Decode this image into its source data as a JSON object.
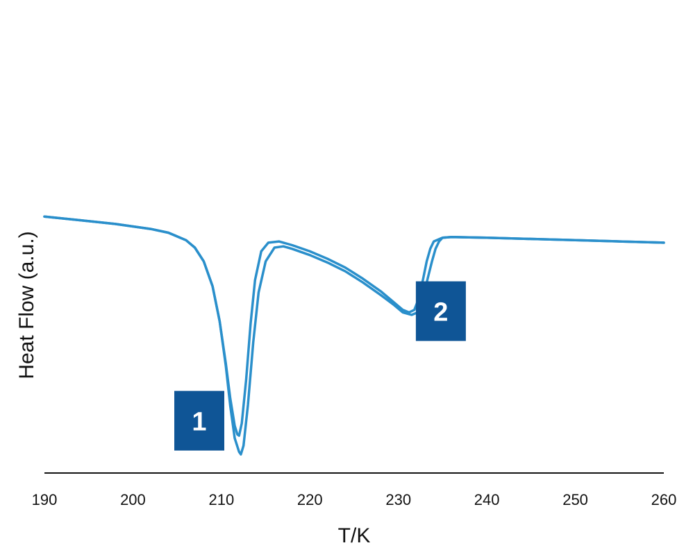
{
  "chart_data": {
    "type": "line",
    "title": "",
    "xlabel": "T/K",
    "ylabel": "Heat Flow (a.u.)",
    "xlim": [
      190,
      260
    ],
    "ylim": [
      -1.0,
      1.15
    ],
    "x_ticks": [
      190,
      200,
      210,
      220,
      230,
      240,
      250,
      260
    ],
    "y_ticks_shown": false,
    "grid": false,
    "legend": "none",
    "line_color": "#2a8fcb",
    "label_box_color": "#0f5596",
    "series": [
      {
        "x": [
          190,
          194,
          198,
          202,
          204,
          206,
          207,
          208,
          209,
          209.8,
          210.5,
          211.0,
          211.5,
          211.8,
          212.0,
          212.3,
          212.8,
          213.3,
          213.8,
          214.5,
          215.3,
          216.5,
          218,
          220,
          222,
          224,
          226,
          228,
          229.5,
          230.5,
          231.2,
          231.8,
          232.3,
          232.8,
          233.2,
          233.6,
          234,
          235,
          236,
          240,
          245,
          250,
          255,
          260
        ],
        "y": [
          1.06,
          1.03,
          1.0,
          0.96,
          0.93,
          0.87,
          0.81,
          0.7,
          0.5,
          0.22,
          -0.12,
          -0.4,
          -0.62,
          -0.69,
          -0.7,
          -0.6,
          -0.25,
          0.2,
          0.55,
          0.78,
          0.85,
          0.86,
          0.83,
          0.78,
          0.72,
          0.65,
          0.56,
          0.46,
          0.37,
          0.31,
          0.29,
          0.31,
          0.4,
          0.56,
          0.7,
          0.8,
          0.86,
          0.89,
          0.895,
          0.89,
          0.88,
          0.87,
          0.86,
          0.85
        ]
      },
      {
        "x": [
          190,
          194,
          198,
          202,
          204,
          206,
          207,
          208,
          209,
          209.8,
          210.5,
          211.0,
          211.5,
          212.0,
          212.2,
          212.5,
          213.0,
          213.6,
          214.2,
          215.0,
          216.0,
          217,
          218,
          220,
          222,
          224,
          226,
          228,
          229.5,
          230.5,
          231.5,
          232.2,
          232.8,
          233.3,
          233.8,
          234.2,
          234.6,
          235,
          236,
          240,
          245,
          250,
          255,
          260
        ],
        "y": [
          1.06,
          1.03,
          1.0,
          0.96,
          0.93,
          0.87,
          0.81,
          0.7,
          0.5,
          0.22,
          -0.14,
          -0.46,
          -0.72,
          -0.83,
          -0.85,
          -0.78,
          -0.45,
          0.05,
          0.45,
          0.7,
          0.81,
          0.82,
          0.8,
          0.75,
          0.69,
          0.62,
          0.53,
          0.43,
          0.35,
          0.29,
          0.27,
          0.29,
          0.4,
          0.56,
          0.7,
          0.8,
          0.86,
          0.89,
          0.895,
          0.89,
          0.88,
          0.87,
          0.86,
          0.85
        ]
      }
    ],
    "annotations": [
      {
        "text": "1",
        "x": 207.5,
        "y": -0.58
      },
      {
        "text": "2",
        "x": 234.8,
        "y": 0.3
      }
    ]
  }
}
